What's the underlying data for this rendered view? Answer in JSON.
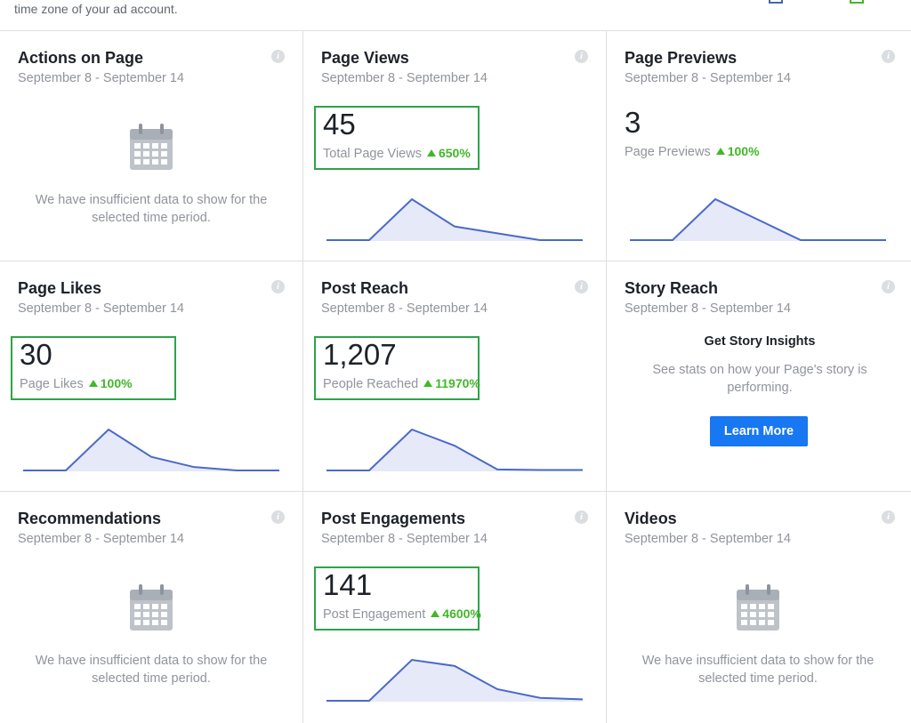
{
  "top_note": "time zone of your ad account.",
  "insufficient_text": "We have insufficient data to show for the selected time period.",
  "cards": [
    {
      "title": "Actions on Page",
      "date": "September 8 - September 14",
      "type": "empty"
    },
    {
      "title": "Page Views",
      "date": "September 8 - September 14",
      "type": "metric",
      "highlight": true,
      "value": "45",
      "label": "Total Page Views",
      "change": "650%",
      "spark": [
        0,
        0,
        6,
        2,
        1,
        0,
        0
      ]
    },
    {
      "title": "Page Previews",
      "date": "September 8 - September 14",
      "type": "metric",
      "highlight": false,
      "value": "3",
      "label": "Page Previews",
      "change": "100%",
      "spark": [
        0,
        0,
        2,
        1,
        0,
        0,
        0
      ]
    },
    {
      "title": "Page Likes",
      "date": "September 8 - September 14",
      "type": "metric",
      "highlight": true,
      "value": "30",
      "label": "Page Likes",
      "change": "100%",
      "spark": [
        0,
        0,
        12,
        4,
        1,
        0,
        0
      ]
    },
    {
      "title": "Post Reach",
      "date": "September 8 - September 14",
      "type": "metric",
      "highlight": true,
      "value": "1,207",
      "label": "People Reached",
      "change": "11970%",
      "spark": [
        0,
        0,
        430,
        260,
        10,
        5,
        5
      ]
    },
    {
      "title": "Story Reach",
      "date": "September 8 - September 14",
      "type": "story",
      "heading": "Get Story Insights",
      "desc": "See stats on how your Page's story is performing.",
      "button": "Learn More"
    },
    {
      "title": "Recommendations",
      "date": "September 8 - September 14",
      "type": "empty"
    },
    {
      "title": "Post Engagements",
      "date": "September 8 - September 14",
      "type": "metric",
      "highlight": true,
      "value": "141",
      "label": "Post Engagement",
      "change": "4600%",
      "spark": [
        0,
        0,
        141,
        120,
        40,
        10,
        5
      ]
    },
    {
      "title": "Videos",
      "date": "September 8 - September 14",
      "type": "empty"
    }
  ],
  "colors": {
    "line": "#4a6ac8",
    "fill": "#e6e9f7",
    "highlight": "#2ea34a",
    "up": "#42b72a"
  }
}
